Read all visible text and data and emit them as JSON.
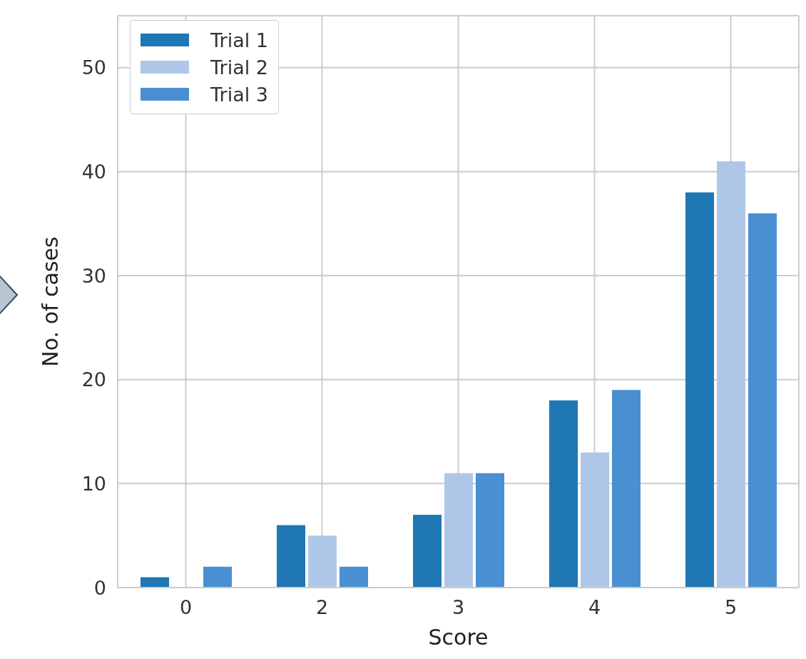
{
  "chart_data": {
    "type": "bar",
    "xlabel": "Score",
    "ylabel": "No. of cases",
    "categories": [
      "0",
      "2",
      "3",
      "4",
      "5"
    ],
    "series": [
      {
        "name": "Trial 1",
        "color": "#1f77b4",
        "values": [
          1,
          6,
          7,
          18,
          38
        ]
      },
      {
        "name": "Trial 2",
        "color": "#aec7e8",
        "values": [
          0,
          5,
          11,
          13,
          41
        ]
      },
      {
        "name": "Trial 3",
        "color": "#4a8fd1",
        "values": [
          2,
          2,
          11,
          19,
          36
        ]
      }
    ],
    "ylim": [
      0,
      55
    ],
    "yticks": [
      0,
      10,
      20,
      30,
      40,
      50
    ],
    "grid": true,
    "legend": "top left"
  }
}
